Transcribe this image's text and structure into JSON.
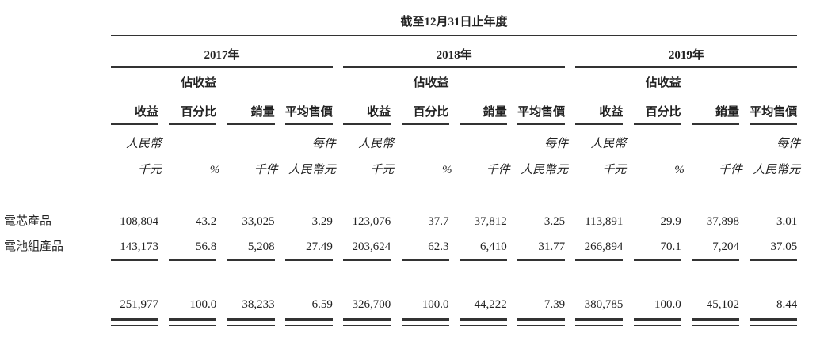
{
  "title": "截至12月31日止年度",
  "years": [
    "2017年",
    "2018年",
    "2019年"
  ],
  "column_headers": [
    {
      "line1": "",
      "line2": "收益",
      "unit1": "人民幣",
      "unit2": "千元"
    },
    {
      "line1": "佔收益",
      "line2": "百分比",
      "unit1": "",
      "unit2": "%"
    },
    {
      "line1": "",
      "line2": "銷量",
      "unit1": "",
      "unit2": "千件"
    },
    {
      "line1": "",
      "line2": "平均售價",
      "unit1": "每件",
      "unit2": "人民幣元"
    }
  ],
  "rows": [
    {
      "label": "電芯產品",
      "values": [
        "108,804",
        "43.2",
        "33,025",
        "3.29",
        "123,076",
        "37.7",
        "37,812",
        "3.25",
        "113,891",
        "29.9",
        "37,898",
        "3.01"
      ]
    },
    {
      "label": "電池組產品",
      "values": [
        "143,173",
        "56.8",
        "5,208",
        "27.49",
        "203,624",
        "62.3",
        "6,410",
        "31.77",
        "266,894",
        "70.1",
        "7,204",
        "37.05"
      ]
    }
  ],
  "total": {
    "label": "",
    "values": [
      "251,977",
      "100.0",
      "38,233",
      "6.59",
      "326,700",
      "100.0",
      "44,222",
      "7.39",
      "380,785",
      "100.0",
      "45,102",
      "8.44"
    ]
  }
}
